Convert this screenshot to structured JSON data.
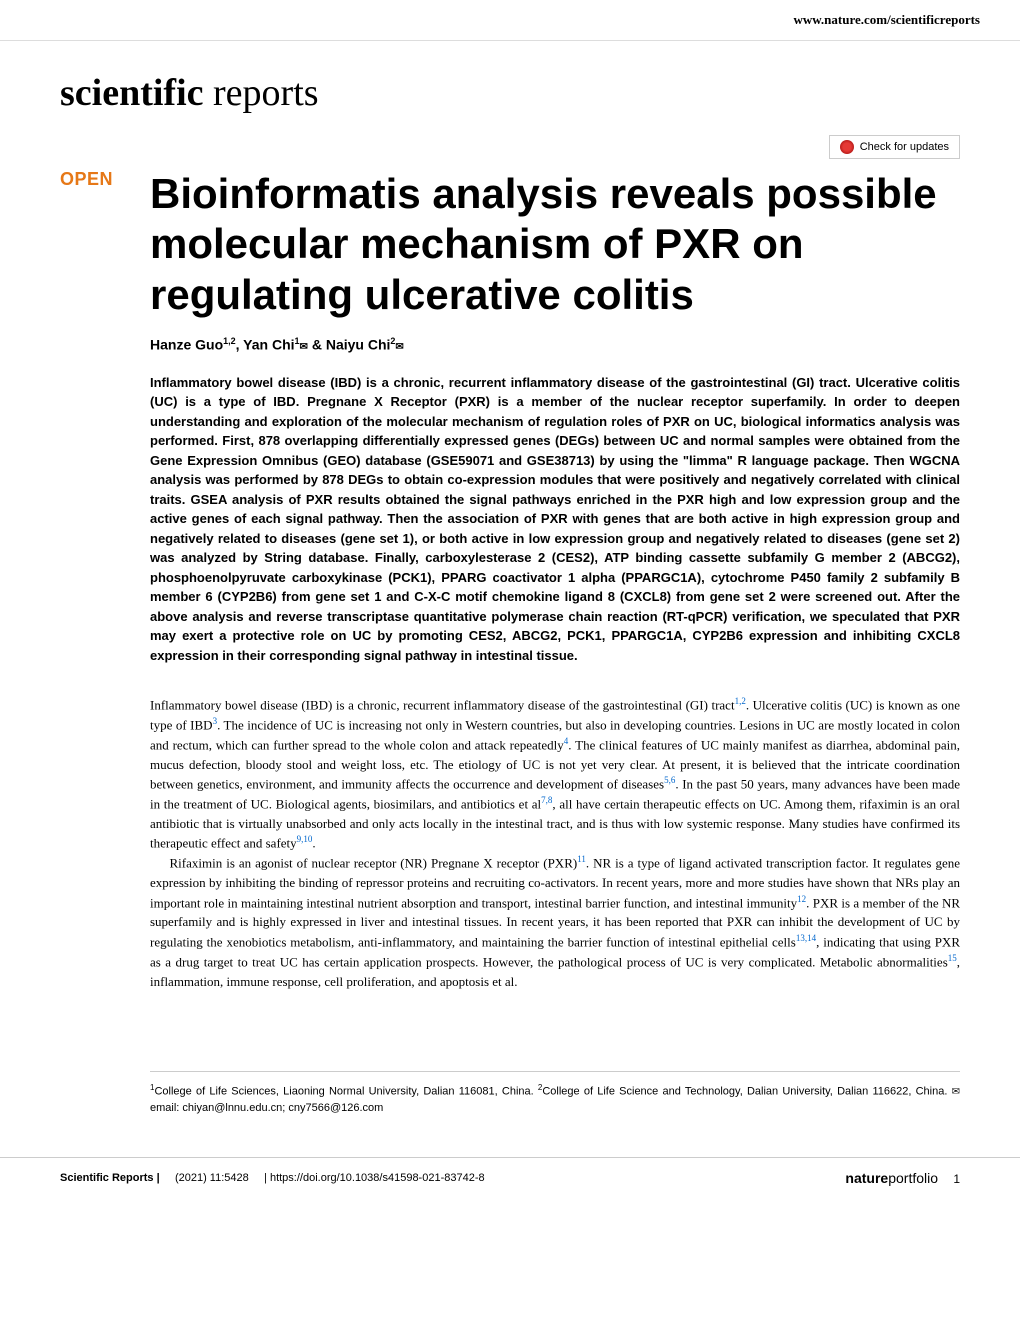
{
  "header": {
    "url": "www.nature.com/scientificreports"
  },
  "journal": {
    "name_bold": "scientific",
    "name_light": " reports"
  },
  "check_updates": {
    "label": "Check for updates"
  },
  "open_label": "OPEN",
  "title": "Bioinformatis analysis reveals possible molecular mechanism of PXR on regulating ulcerative colitis",
  "authors": {
    "a1_name": "Hanze Guo",
    "a1_sup": "1,2",
    "a2_name": "Yan Chi",
    "a2_sup": "1",
    "a3_name": "Naiyu Chi",
    "a3_sup": "2",
    "amp": " & "
  },
  "abstract": "Inflammatory bowel disease (IBD) is a chronic, recurrent inflammatory disease of the gastrointestinal (GI) tract. Ulcerative colitis (UC) is a type of IBD. Pregnane X Receptor (PXR) is a member of the nuclear receptor superfamily. In order to deepen understanding and exploration of the molecular mechanism of regulation roles of PXR on UC, biological informatics analysis was performed. First, 878 overlapping differentially expressed genes (DEGs) between UC and normal samples were obtained from the Gene Expression Omnibus (GEO) database (GSE59071 and GSE38713) by using the \"limma\" R language package. Then WGCNA analysis was performed by 878 DEGs to obtain co-expression modules that were positively and negatively correlated with clinical traits. GSEA analysis of PXR results obtained the signal pathways enriched in the PXR high and low expression group and the active genes of each signal pathway. Then the association of PXR with genes that are both active in high expression group and negatively related to diseases (gene set 1), or both active in low expression group and negatively related to diseases (gene set 2) was analyzed by String database. Finally, carboxylesterase 2 (CES2), ATP binding cassette subfamily G member 2 (ABCG2), phosphoenolpyruvate carboxykinase (PCK1), PPARG coactivator 1 alpha (PPARGC1A), cytochrome P450 family 2 subfamily B member 6 (CYP2B6) from gene set 1 and C-X-C motif chemokine ligand 8 (CXCL8) from gene set 2 were screened out. After the above analysis and reverse transcriptase quantitative polymerase chain reaction (RT-qPCR) verification, we speculated that PXR may exert a protective role on UC by promoting CES2, ABCG2, PCK1, PPARGC1A, CYP2B6 expression and inhibiting CXCL8 expression in their corresponding signal pathway in intestinal tissue.",
  "body": {
    "p1_a": "Inflammatory bowel disease (IBD) is a chronic, recurrent inflammatory disease of the gastrointestinal (GI) tract",
    "p1_b": ". Ulcerative colitis (UC) is known as one type of IBD",
    "p1_c": ". The incidence of UC is increasing not only in Western countries, but also in developing countries. Lesions in UC are mostly located in colon and rectum, which can further spread to the whole colon and attack repeatedly",
    "p1_d": ". The clinical features of UC mainly manifest as diarrhea, abdominal pain, mucus defection, bloody stool and weight loss, etc. The etiology of UC is not yet very clear. At present, it is believed that the intricate coordination between genetics, environment, and immunity affects the occurrence and development of diseases",
    "p1_e": ". In the past 50 years, many advances have been made in the treatment of UC. Biological agents, biosimilars, and antibiotics et al",
    "p1_f": ", all have certain therapeutic effects on UC. Among them, rifaximin is an oral antibiotic that is virtually unabsorbed and only acts locally in the intestinal tract, and is thus with low systemic response. Many studies have confirmed its therapeutic effect and safety",
    "p1_g": ".",
    "p2_a": "Rifaximin is an agonist of nuclear receptor (NR) Pregnane X receptor (PXR)",
    "p2_b": ". NR is a type of ligand activated transcription factor. It regulates gene expression by inhibiting the binding of repressor proteins and recruiting co-activators. In recent years, more and more studies have shown that NRs play an important role in maintaining intestinal nutrient absorption and transport, intestinal barrier function, and intestinal immunity",
    "p2_c": ". PXR is a member of the NR superfamily and is highly expressed in liver and intestinal tissues. In recent years, it has been reported that PXR can inhibit the development of UC by regulating the xenobiotics metabolism, anti-inflammatory, and maintaining the barrier function of intestinal epithelial cells",
    "p2_d": ", indicating that using PXR as a drug target to treat UC has certain application prospects. However, the pathological process of UC is very complicated. Metabolic abnormalities",
    "p2_e": ", inflammation, immune response, cell proliferation, and apoptosis et al."
  },
  "refs": {
    "r1": "1,2",
    "r2": "3",
    "r3": "4",
    "r4": "5,6",
    "r5": "7,8",
    "r6": "9,10",
    "r7": "11",
    "r8": "12",
    "r9": "13,14",
    "r10": "15"
  },
  "affiliations": {
    "a1_sup": "1",
    "a1_text": "College of Life Sciences, Liaoning Normal University, Dalian 116081, China. ",
    "a2_sup": "2",
    "a2_text": "College of Life Science and Technology, Dalian University, Dalian 116622, China. ",
    "email_label": "email: ",
    "email1": "chiyan@lnnu.edu.cn",
    "sep": "; ",
    "email2": "cny7566@126.com"
  },
  "footer": {
    "journal": "Scientific Reports |",
    "citation": "(2021) 11:5428",
    "doi": "| https://doi.org/10.1038/s41598-021-83742-8",
    "logo_bold": "nature",
    "logo_light": "portfolio",
    "page": "1"
  }
}
